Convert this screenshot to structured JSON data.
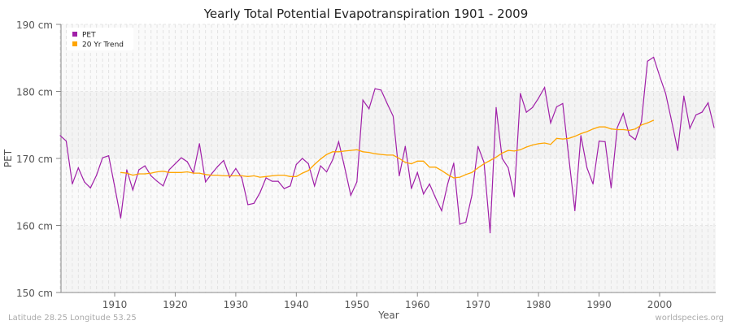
{
  "chart_data": {
    "type": "line",
    "title": "Yearly Total Potential Evapotranspiration 1901 - 2009",
    "xlabel": "Year",
    "ylabel": "PET",
    "xlim": [
      1901,
      2009
    ],
    "ylim": [
      150,
      190
    ],
    "y_ticks": [
      150,
      160,
      170,
      180,
      190
    ],
    "y_tick_labels": [
      "150 cm",
      "160 cm",
      "170 cm",
      "180 cm",
      "190 cm"
    ],
    "x_ticks": [
      1910,
      1920,
      1930,
      1940,
      1950,
      1960,
      1970,
      1980,
      1990,
      2000
    ],
    "x_tick_labels": [
      "1910",
      "1920",
      "1930",
      "1940",
      "1950",
      "1960",
      "1970",
      "1980",
      "1990",
      "2000"
    ],
    "grid": true,
    "legend_position": "top-left",
    "series": [
      {
        "name": "PET",
        "color": "#a020a8",
        "x_start": 1901,
        "values": [
          173.4,
          172.6,
          166.2,
          168.6,
          166.5,
          165.6,
          167.5,
          170.1,
          170.4,
          165.8,
          161.1,
          168.3,
          165.3,
          168.3,
          168.9,
          167.4,
          166.6,
          165.9,
          168.3,
          169.2,
          170.1,
          169.5,
          167.8,
          172.2,
          166.5,
          167.7,
          168.8,
          169.7,
          167.2,
          168.5,
          167.1,
          163.1,
          163.3,
          164.9,
          167.1,
          166.6,
          166.6,
          165.5,
          165.9,
          169.1,
          170.0,
          169.2,
          165.9,
          168.9,
          168.0,
          169.8,
          172.5,
          168.6,
          164.5,
          166.5,
          178.7,
          177.4,
          180.4,
          180.2,
          178.2,
          176.3,
          167.4,
          171.8,
          165.5,
          167.9,
          164.7,
          166.2,
          164.1,
          162.2,
          166.2,
          169.3,
          160.2,
          160.5,
          164.5,
          171.8,
          169.4,
          158.9,
          177.6,
          170.0,
          168.6,
          164.3,
          179.7,
          176.9,
          177.6,
          179.0,
          180.6,
          175.3,
          177.7,
          178.2,
          170.2,
          162.2,
          173.4,
          168.6,
          166.2,
          172.6,
          172.5,
          165.6,
          174.6,
          176.7,
          173.5,
          172.8,
          175.5,
          184.5,
          185.1,
          182.3,
          179.7,
          175.5,
          171.2,
          179.3,
          174.5,
          176.5,
          176.9,
          178.3,
          174.6
        ]
      },
      {
        "name": "20 Yr Trend",
        "color": "#ffa500",
        "x_start": 1911,
        "values": [
          167.9,
          167.8,
          167.5,
          167.7,
          167.7,
          167.8,
          168.0,
          168.1,
          167.9,
          167.9,
          167.9,
          168.0,
          167.8,
          167.8,
          167.6,
          167.5,
          167.5,
          167.4,
          167.4,
          167.4,
          167.4,
          167.3,
          167.4,
          167.2,
          167.3,
          167.4,
          167.5,
          167.5,
          167.3,
          167.3,
          167.8,
          168.2,
          169.1,
          169.9,
          170.6,
          171.0,
          171.0,
          171.1,
          171.2,
          171.3,
          171.0,
          170.9,
          170.7,
          170.6,
          170.5,
          170.5,
          170.0,
          169.4,
          169.2,
          169.6,
          169.6,
          168.7,
          168.7,
          168.2,
          167.6,
          167.1,
          167.2,
          167.6,
          167.9,
          168.6,
          169.2,
          169.7,
          170.2,
          170.8,
          171.2,
          171.1,
          171.3,
          171.7,
          172.0,
          172.2,
          172.3,
          172.1,
          173.0,
          172.9,
          173.0,
          173.3,
          173.7,
          174.0,
          174.4,
          174.7,
          174.7,
          174.4,
          174.3,
          174.3,
          174.2,
          174.4,
          175.0,
          175.3,
          175.7
        ]
      }
    ]
  },
  "footer": {
    "location": "Latitude 28.25 Longitude 53.25",
    "source": "worldspecies.org"
  }
}
